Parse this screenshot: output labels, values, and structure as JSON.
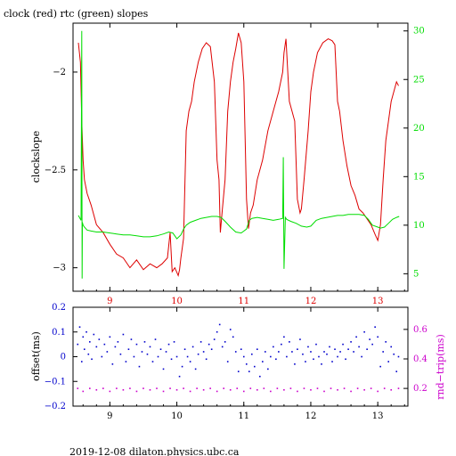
{
  "title": "clock (red) rtc (green) slopes",
  "footer": "2019-12-08  dilaton.physics.ubc.ca",
  "colors": {
    "clock": "#dd0000",
    "rtc": "#00dd00",
    "offset": "#0000cc",
    "rndtrip": "#cc00cc",
    "axis": "#000000"
  },
  "chart_data": [
    {
      "type": "line",
      "title": "clock (red) rtc (green) slopes",
      "xlabel": "",
      "ylabel": "clockslope",
      "y2label": "",
      "xlim": [
        8.45,
        13.45
      ],
      "ylim": [
        -3.12,
        -1.75
      ],
      "y2lim": [
        3.2,
        30.8
      ],
      "xticks": [
        9,
        10,
        11,
        12,
        13
      ],
      "yticks": [
        -3,
        -2.5,
        -2
      ],
      "y2ticks": [
        5,
        10,
        15,
        20,
        25,
        30
      ],
      "series": [
        {
          "name": "clock",
          "axis": "left",
          "x": [
            8.53,
            8.56,
            8.58,
            8.6,
            8.62,
            8.66,
            8.72,
            8.8,
            8.9,
            9.0,
            9.1,
            9.2,
            9.3,
            9.4,
            9.5,
            9.6,
            9.7,
            9.78,
            9.86,
            9.9,
            9.93,
            9.97,
            10.02,
            10.04,
            10.06,
            10.1,
            10.14,
            10.18,
            10.22,
            10.26,
            10.32,
            10.38,
            10.44,
            10.5,
            10.56,
            10.6,
            10.63,
            10.65,
            10.68,
            10.72,
            10.76,
            10.8,
            10.84,
            10.88,
            10.92,
            10.96,
            11.0,
            11.04,
            11.07,
            11.1,
            11.14,
            11.2,
            11.28,
            11.36,
            11.44,
            11.52,
            11.58,
            11.6,
            11.63,
            11.68,
            11.72,
            11.76,
            11.8,
            11.84,
            11.86,
            11.9,
            11.96,
            12.0,
            12.04,
            12.1,
            12.18,
            12.26,
            12.32,
            12.36,
            12.4,
            12.43,
            12.48,
            12.54,
            12.6,
            12.66,
            12.72,
            12.78,
            12.84,
            12.9,
            12.96,
            13.0,
            13.04,
            13.08,
            13.12,
            13.16,
            13.2,
            13.24,
            13.28,
            13.31
          ],
          "values": [
            -1.85,
            -1.95,
            -2.25,
            -2.45,
            -2.55,
            -2.62,
            -2.68,
            -2.78,
            -2.82,
            -2.88,
            -2.93,
            -2.95,
            -3.0,
            -2.96,
            -3.01,
            -2.98,
            -3.0,
            -2.98,
            -2.95,
            -2.82,
            -3.02,
            -3.0,
            -3.04,
            -3.01,
            -2.95,
            -2.85,
            -2.3,
            -2.2,
            -2.15,
            -2.05,
            -1.95,
            -1.88,
            -1.85,
            -1.87,
            -2.05,
            -2.45,
            -2.55,
            -2.82,
            -2.7,
            -2.55,
            -2.2,
            -2.05,
            -1.95,
            -1.88,
            -1.8,
            -1.85,
            -2.05,
            -2.65,
            -2.8,
            -2.72,
            -2.68,
            -2.55,
            -2.45,
            -2.3,
            -2.2,
            -2.1,
            -2.0,
            -1.9,
            -1.83,
            -2.15,
            -2.2,
            -2.25,
            -2.65,
            -2.72,
            -2.7,
            -2.55,
            -2.3,
            -2.1,
            -2.0,
            -1.9,
            -1.85,
            -1.83,
            -1.84,
            -1.86,
            -2.15,
            -2.2,
            -2.35,
            -2.48,
            -2.58,
            -2.63,
            -2.7,
            -2.72,
            -2.75,
            -2.78,
            -2.83,
            -2.86,
            -2.78,
            -2.55,
            -2.35,
            -2.25,
            -2.15,
            -2.1,
            -2.05,
            -2.07
          ]
        },
        {
          "name": "rtc",
          "axis": "right",
          "x": [
            8.53,
            8.57,
            8.58,
            8.585,
            8.59,
            8.6,
            8.62,
            8.66,
            8.72,
            8.8,
            8.9,
            9.0,
            9.1,
            9.2,
            9.3,
            9.4,
            9.5,
            9.6,
            9.7,
            9.8,
            9.88,
            9.94,
            10.0,
            10.06,
            10.1,
            10.14,
            10.2,
            10.28,
            10.36,
            10.44,
            10.52,
            10.6,
            10.66,
            10.72,
            10.8,
            10.88,
            10.96,
            11.04,
            11.08,
            11.12,
            11.2,
            11.28,
            11.36,
            11.44,
            11.52,
            11.58,
            11.59,
            11.6,
            11.62,
            11.64,
            11.7,
            11.78,
            11.86,
            11.94,
            12.0,
            12.08,
            12.16,
            12.24,
            12.32,
            12.4,
            12.48,
            12.56,
            12.64,
            12.72,
            12.8,
            12.86,
            12.92,
            13.0,
            13.04,
            13.1,
            13.16,
            13.22,
            13.28,
            13.32
          ],
          "values": [
            11.0,
            10.5,
            30.0,
            4.5,
            10.3,
            10.0,
            9.8,
            9.5,
            9.4,
            9.3,
            9.3,
            9.2,
            9.1,
            9.0,
            9.0,
            8.9,
            8.8,
            8.8,
            8.9,
            9.1,
            9.3,
            9.2,
            8.6,
            9.0,
            9.6,
            10.0,
            10.3,
            10.5,
            10.7,
            10.8,
            10.9,
            10.9,
            10.8,
            10.4,
            9.8,
            9.3,
            9.2,
            9.6,
            10.5,
            10.7,
            10.8,
            10.7,
            10.6,
            10.5,
            10.6,
            10.7,
            17.0,
            5.5,
            10.8,
            10.6,
            10.4,
            10.2,
            9.9,
            9.8,
            9.9,
            10.5,
            10.7,
            10.8,
            10.9,
            11.0,
            11.0,
            11.1,
            11.1,
            11.1,
            11.0,
            10.6,
            10.0,
            9.8,
            9.7,
            9.8,
            10.2,
            10.6,
            10.8,
            10.9
          ]
        }
      ]
    },
    {
      "type": "scatter",
      "title": "",
      "xlabel": "",
      "ylabel": "offset(ms)",
      "y2label": "rnd−trip(ms)",
      "xlim": [
        8.45,
        13.45
      ],
      "ylim": [
        -0.2,
        0.2
      ],
      "y2lim": [
        0.08,
        0.75
      ],
      "xticks": [
        9,
        10,
        11,
        12,
        13
      ],
      "yticks": [
        -0.2,
        -0.1,
        0,
        0.1,
        0.2
      ],
      "y2ticks": [
        0.2,
        0.4,
        0.6
      ],
      "series": [
        {
          "name": "offset",
          "axis": "left",
          "x": [
            8.52,
            8.55,
            8.58,
            8.6,
            8.62,
            8.65,
            8.68,
            8.7,
            8.73,
            8.76,
            8.8,
            8.84,
            8.88,
            8.92,
            8.96,
            9.0,
            9.04,
            9.08,
            9.12,
            9.16,
            9.2,
            9.24,
            9.28,
            9.32,
            9.36,
            9.4,
            9.44,
            9.48,
            9.52,
            9.56,
            9.6,
            9.64,
            9.68,
            9.72,
            9.76,
            9.8,
            9.84,
            9.88,
            9.92,
            9.96,
            10.0,
            10.04,
            10.08,
            10.12,
            10.16,
            10.2,
            10.24,
            10.28,
            10.32,
            10.36,
            10.4,
            10.44,
            10.48,
            10.52,
            10.56,
            10.6,
            10.64,
            10.68,
            10.72,
            10.76,
            10.8,
            10.84,
            10.88,
            10.92,
            10.96,
            11.0,
            11.04,
            11.08,
            11.12,
            11.16,
            11.2,
            11.24,
            11.28,
            11.32,
            11.36,
            11.4,
            11.44,
            11.48,
            11.52,
            11.56,
            11.6,
            11.64,
            11.68,
            11.72,
            11.76,
            11.8,
            11.84,
            11.88,
            11.92,
            11.96,
            12.0,
            12.04,
            12.08,
            12.12,
            12.16,
            12.2,
            12.24,
            12.28,
            12.32,
            12.36,
            12.4,
            12.44,
            12.48,
            12.52,
            12.56,
            12.6,
            12.64,
            12.68,
            12.72,
            12.76,
            12.8,
            12.84,
            12.88,
            12.92,
            12.96,
            13.0,
            13.04,
            13.08,
            13.12,
            13.16,
            13.2,
            13.24,
            13.28,
            13.31
          ],
          "values": [
            0.05,
            0.12,
            -0.02,
            0.08,
            0.03,
            0.1,
            0.01,
            0.06,
            -0.01,
            0.09,
            0.04,
            0.07,
            0.0,
            0.05,
            0.02,
            0.08,
            -0.03,
            0.04,
            0.06,
            0.01,
            0.09,
            -0.02,
            0.03,
            0.07,
            0.0,
            0.05,
            -0.04,
            0.02,
            0.06,
            0.01,
            0.04,
            -0.02,
            0.07,
            0.0,
            0.03,
            -0.05,
            0.02,
            0.05,
            -0.01,
            0.06,
            0.0,
            -0.08,
            -0.04,
            0.03,
            0.0,
            -0.02,
            0.04,
            -0.05,
            0.01,
            0.06,
            0.02,
            -0.01,
            0.05,
            0.03,
            0.07,
            0.1,
            0.13,
            0.04,
            0.06,
            -0.02,
            0.11,
            0.08,
            0.02,
            -0.06,
            0.03,
            0.0,
            -0.03,
            -0.06,
            0.01,
            -0.04,
            0.03,
            -0.08,
            -0.02,
            0.02,
            -0.05,
            0.0,
            0.04,
            -0.01,
            0.02,
            0.05,
            0.08,
            0.0,
            0.06,
            0.02,
            -0.03,
            0.03,
            0.07,
            0.01,
            -0.02,
            0.04,
            0.02,
            -0.01,
            0.05,
            0.0,
            -0.03,
            0.02,
            0.01,
            0.04,
            -0.02,
            0.03,
            0.0,
            0.02,
            0.05,
            -0.01,
            0.03,
            0.06,
            0.02,
            0.08,
            0.04,
            0.0,
            0.1,
            0.03,
            0.07,
            0.05,
            0.12,
            0.08,
            -0.04,
            0.02,
            0.06,
            -0.02,
            0.04,
            0.01,
            -0.06,
            0.0
          ]
        },
        {
          "name": "rnd-trip",
          "axis": "right",
          "x": [
            8.52,
            8.6,
            8.7,
            8.8,
            8.9,
            9.0,
            9.1,
            9.2,
            9.3,
            9.4,
            9.5,
            9.6,
            9.7,
            9.8,
            9.9,
            10.0,
            10.1,
            10.2,
            10.3,
            10.4,
            10.5,
            10.6,
            10.7,
            10.8,
            10.9,
            11.0,
            11.1,
            11.2,
            11.3,
            11.4,
            11.5,
            11.6,
            11.7,
            11.8,
            11.9,
            12.0,
            12.1,
            12.2,
            12.3,
            12.4,
            12.5,
            12.6,
            12.7,
            12.8,
            12.9,
            13.0,
            13.1,
            13.2,
            13.31
          ],
          "values": [
            0.2,
            0.18,
            0.2,
            0.19,
            0.2,
            0.18,
            0.2,
            0.19,
            0.2,
            0.18,
            0.2,
            0.19,
            0.2,
            0.18,
            0.2,
            0.19,
            0.2,
            0.18,
            0.2,
            0.19,
            0.2,
            0.18,
            0.2,
            0.19,
            0.2,
            0.18,
            0.2,
            0.19,
            0.2,
            0.18,
            0.2,
            0.19,
            0.2,
            0.18,
            0.2,
            0.19,
            0.2,
            0.18,
            0.2,
            0.19,
            0.2,
            0.18,
            0.2,
            0.19,
            0.2,
            0.18,
            0.2,
            0.19,
            0.2
          ]
        }
      ]
    }
  ]
}
